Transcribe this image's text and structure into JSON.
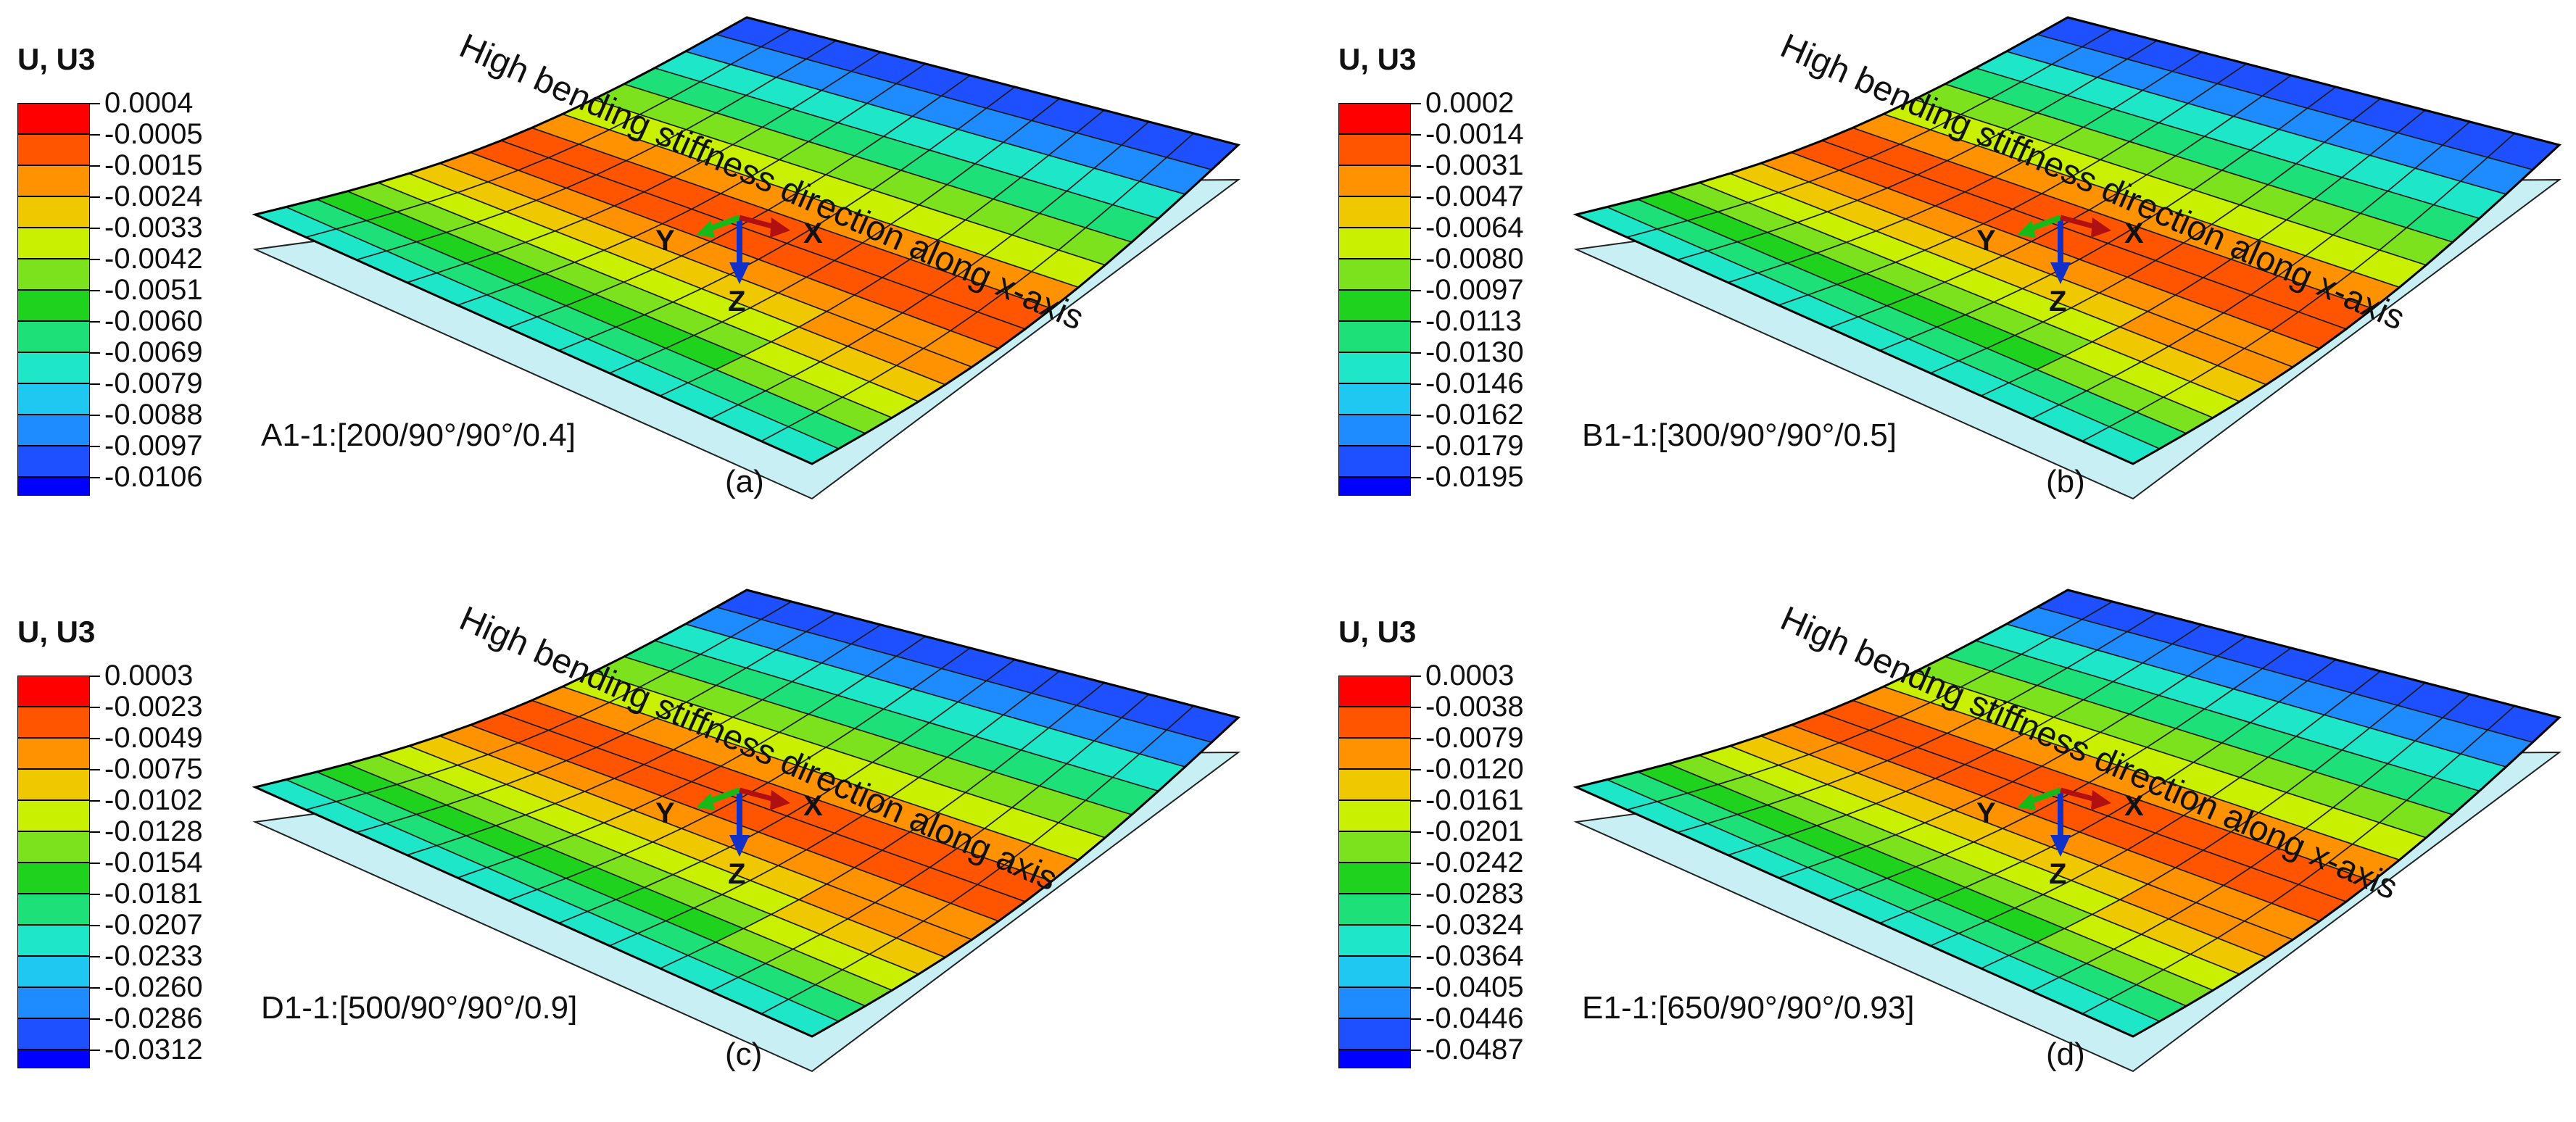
{
  "legend_title": "U, U3",
  "annotation": "High bending stiffness direction along x-axis",
  "axes": {
    "x": "X",
    "y": "Y",
    "z": "Z"
  },
  "legend_colors": [
    "#ff0000",
    "#ff5500",
    "#ff9200",
    "#f0c800",
    "#c8f000",
    "#7ce21e",
    "#1ed21e",
    "#1ee078",
    "#1ee6c8",
    "#1ec8f0",
    "#1e8cff",
    "#1e50ff",
    "#0000ff"
  ],
  "panels": [
    {
      "case": "A1-1:[200/90°/90°/0.4]",
      "label": "(a)",
      "annotation": "High bending stiffness direction along x-axis",
      "levels": [
        "0.0004",
        "-0.0005",
        "-0.0015",
        "-0.0024",
        "-0.0033",
        "-0.0042",
        "-0.0051",
        "-0.0060",
        "-0.0069",
        "-0.0079",
        "-0.0088",
        "-0.0097",
        "-0.0106"
      ]
    },
    {
      "case": "B1-1:[300/90°/90°/0.5]",
      "label": "(b)",
      "annotation": "High bending stiffness direction along x-axis",
      "levels": [
        "0.0002",
        "-0.0014",
        "-0.0031",
        "-0.0047",
        "-0.0064",
        "-0.0080",
        "-0.0097",
        "-0.0113",
        "-0.0130",
        "-0.0146",
        "-0.0162",
        "-0.0179",
        "-0.0195"
      ]
    },
    {
      "case": "D1-1:[500/90°/90°/0.9]",
      "label": "(c)",
      "annotation": "High bending stiffness direction along axis",
      "levels": [
        "0.0003",
        "-0.0023",
        "-0.0049",
        "-0.0075",
        "-0.0102",
        "-0.0128",
        "-0.0154",
        "-0.0181",
        "-0.0207",
        "-0.0233",
        "-0.0260",
        "-0.0286",
        "-0.0312"
      ]
    },
    {
      "case": "E1-1:[650/90°/90°/0.93]",
      "label": "(d)",
      "annotation": "High bendng stiffness direction along x-axis",
      "levels": [
        "0.0003",
        "-0.0038",
        "-0.0079",
        "-0.0120",
        "-0.0161",
        "-0.0201",
        "-0.0242",
        "-0.0283",
        "-0.0324",
        "-0.0364",
        "-0.0405",
        "-0.0446",
        "-0.0487"
      ]
    }
  ]
}
